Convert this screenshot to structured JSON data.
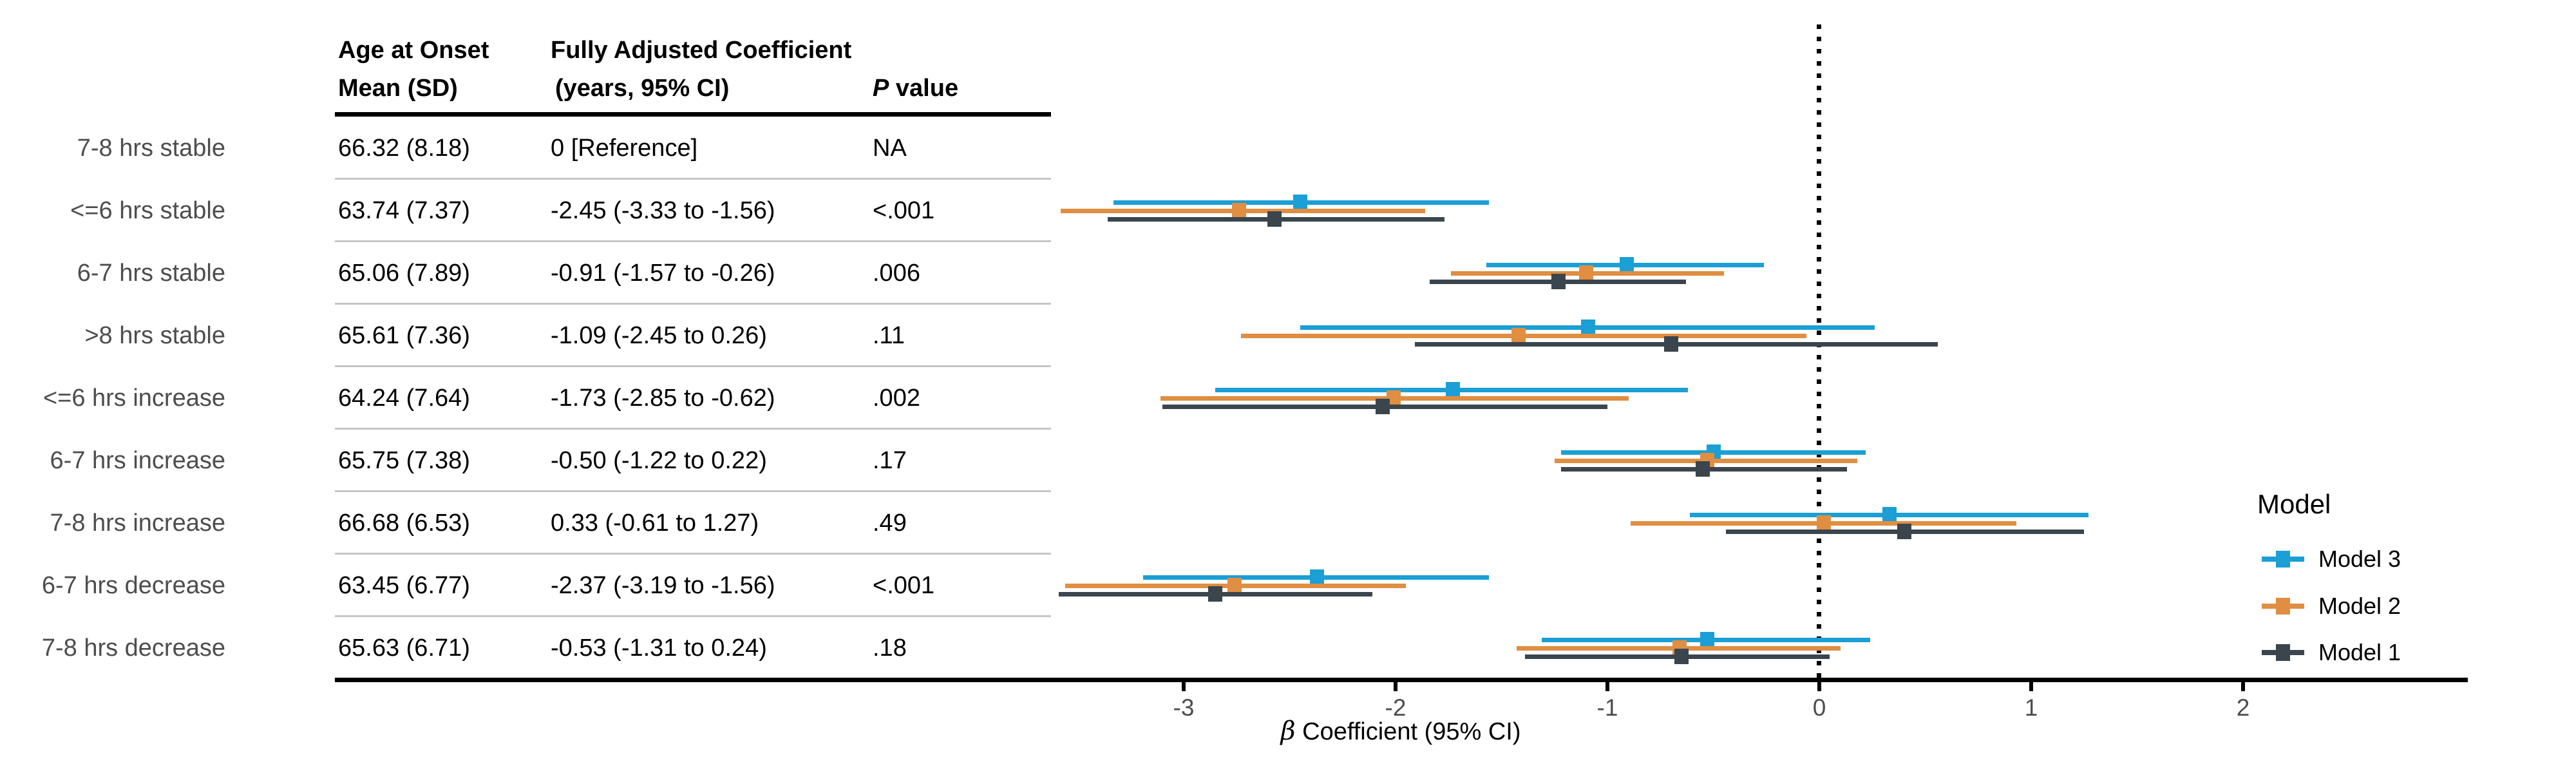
{
  "table": {
    "header": {
      "col1_line1": "Age at Onset",
      "col1_line2": "Mean (SD)",
      "col2_line1": "Fully Adjusted Coefficient",
      "col2_line2": "(years, 95% CI)",
      "p_italic": "P",
      "p_rest": " value"
    },
    "rows": [
      {
        "label": "7-8 hrs stable",
        "mean_sd": "66.32 (8.18)",
        "coef": "0 [Reference]",
        "p": "NA"
      },
      {
        "label": "<=6 hrs stable",
        "mean_sd": "63.74 (7.37)",
        "coef": "-2.45 (-3.33 to -1.56)",
        "p": "<.001"
      },
      {
        "label": "6-7 hrs stable",
        "mean_sd": "65.06 (7.89)",
        "coef": "-0.91 (-1.57 to -0.26)",
        "p": ".006"
      },
      {
        "label": ">8 hrs stable",
        "mean_sd": "65.61 (7.36)",
        "coef": "-1.09 (-2.45 to 0.26)",
        "p": ".11"
      },
      {
        "label": "<=6 hrs increase",
        "mean_sd": "64.24 (7.64)",
        "coef": "-1.73 (-2.85 to -0.62)",
        "p": ".002"
      },
      {
        "label": "6-7 hrs increase",
        "mean_sd": "65.75 (7.38)",
        "coef": "-0.50 (-1.22 to 0.22)",
        "p": ".17"
      },
      {
        "label": "7-8 hrs increase",
        "mean_sd": "66.68 (6.53)",
        "coef": "0.33 (-0.61 to 1.27)",
        "p": ".49"
      },
      {
        "label": "6-7 hrs decrease",
        "mean_sd": "63.45 (6.77)",
        "coef": "-2.37 (-3.19 to -1.56)",
        "p": "<.001"
      },
      {
        "label": "7-8 hrs decrease",
        "mean_sd": "65.63 (6.71)",
        "coef": "-0.53 (-1.31 to 0.24)",
        "p": ".18"
      }
    ]
  },
  "chart_data": {
    "type": "forest",
    "xlabel_beta": "β",
    "xlabel_rest": " Coefficient (95% CI)",
    "x_ticks": [
      -3,
      -2,
      -1,
      0,
      1,
      2
    ],
    "zero_reference": 0,
    "grid": false,
    "reference_category": "7-8 hrs stable",
    "categories": [
      "<=6 hrs stable",
      "6-7 hrs stable",
      ">8 hrs stable",
      "<=6 hrs increase",
      "6-7 hrs increase",
      "7-8 hrs increase",
      "6-7 hrs decrease",
      "7-8 hrs decrease"
    ],
    "series": [
      {
        "name": "Model 3",
        "color": "#1b9fd5",
        "values": [
          {
            "est": -2.45,
            "lo": -3.33,
            "hi": -1.56
          },
          {
            "est": -0.91,
            "lo": -1.57,
            "hi": -0.26
          },
          {
            "est": -1.09,
            "lo": -2.45,
            "hi": 0.26
          },
          {
            "est": -1.73,
            "lo": -2.85,
            "hi": -0.62
          },
          {
            "est": -0.5,
            "lo": -1.22,
            "hi": 0.22
          },
          {
            "est": 0.33,
            "lo": -0.61,
            "hi": 1.27
          },
          {
            "est": -2.37,
            "lo": -3.19,
            "hi": -1.56
          },
          {
            "est": -0.53,
            "lo": -1.31,
            "hi": 0.24
          }
        ]
      },
      {
        "name": "Model 2",
        "color": "#df8e42",
        "values": [
          {
            "est": -2.74,
            "lo": -3.58,
            "hi": -1.86
          },
          {
            "est": -1.1,
            "lo": -1.74,
            "hi": -0.45
          },
          {
            "est": -1.42,
            "lo": -2.73,
            "hi": -0.06
          },
          {
            "est": -2.01,
            "lo": -3.11,
            "hi": -0.9
          },
          {
            "est": -0.53,
            "lo": -1.25,
            "hi": 0.18
          },
          {
            "est": 0.02,
            "lo": -0.89,
            "hi": 0.93
          },
          {
            "est": -2.76,
            "lo": -3.56,
            "hi": -1.95
          },
          {
            "est": -0.66,
            "lo": -1.43,
            "hi": 0.1
          }
        ]
      },
      {
        "name": "Model 1",
        "color": "#3a454d",
        "values": [
          {
            "est": -2.57,
            "lo": -3.36,
            "hi": -1.77
          },
          {
            "est": -1.23,
            "lo": -1.84,
            "hi": -0.63
          },
          {
            "est": -0.7,
            "lo": -1.91,
            "hi": 0.56
          },
          {
            "est": -2.06,
            "lo": -3.1,
            "hi": -1.0
          },
          {
            "est": -0.55,
            "lo": -1.22,
            "hi": 0.13
          },
          {
            "est": 0.4,
            "lo": -0.44,
            "hi": 1.25
          },
          {
            "est": -2.85,
            "lo": -3.59,
            "hi": -2.11
          },
          {
            "est": -0.65,
            "lo": -1.39,
            "hi": 0.05
          }
        ]
      }
    ]
  },
  "legend": {
    "title": "Model",
    "entries": [
      {
        "label": "Model 3",
        "color": "#1b9fd5"
      },
      {
        "label": "Model 2",
        "color": "#df8e42"
      },
      {
        "label": "Model 1",
        "color": "#3a454d"
      }
    ]
  },
  "colors": {
    "model3": "#1b9fd5",
    "model2": "#df8e42",
    "model1": "#3a454d",
    "axis_text": "#4d4d4d",
    "row_label_text": "#4d4d4d",
    "separator": "#c6c6c6",
    "rule": "#000000"
  }
}
